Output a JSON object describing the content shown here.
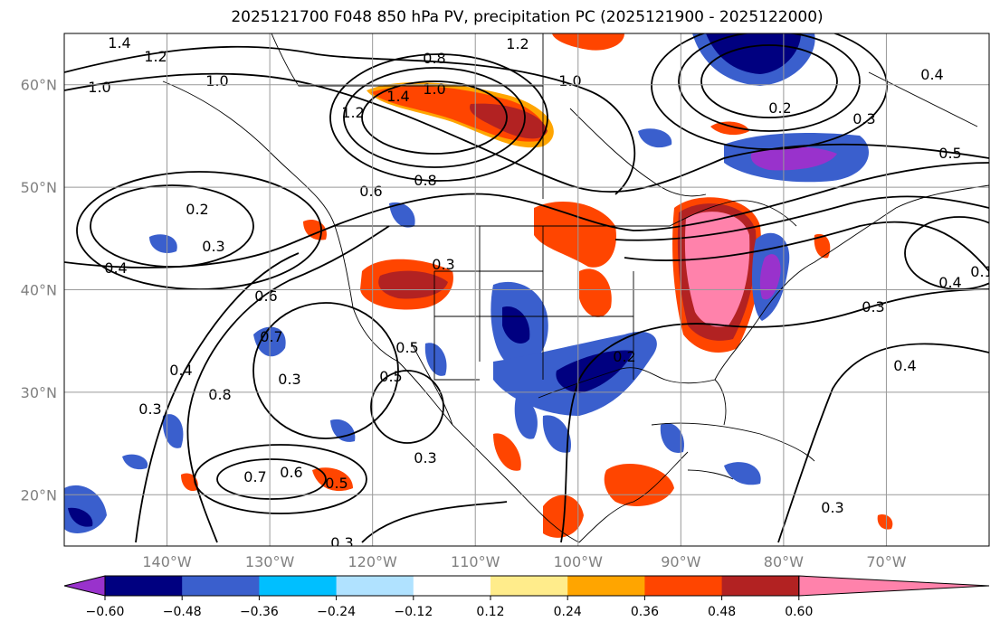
{
  "title": "2025121700 F048 850 hPa PV, precipitation PC (2025121900 - 2025122000)",
  "map": {
    "lon_range": [
      -150,
      -60
    ],
    "lat_range": [
      15,
      65
    ],
    "lon_ticks": [
      {
        "value": -140,
        "label": "140°W"
      },
      {
        "value": -130,
        "label": "130°W"
      },
      {
        "value": -120,
        "label": "120°W"
      },
      {
        "value": -110,
        "label": "110°W"
      },
      {
        "value": -100,
        "label": "100°W"
      },
      {
        "value": -90,
        "label": "90°W"
      },
      {
        "value": -80,
        "label": "80°W"
      },
      {
        "value": -70,
        "label": "70°W"
      }
    ],
    "lat_ticks": [
      {
        "value": 60,
        "label": "60°N"
      },
      {
        "value": 50,
        "label": "50°N"
      },
      {
        "value": 40,
        "label": "40°N"
      },
      {
        "value": 30,
        "label": "30°N"
      },
      {
        "value": 20,
        "label": "20°N"
      }
    ],
    "contour_labels": [
      "1.4",
      "1.2",
      "1.0",
      "1.0",
      "1.2",
      "1.4",
      "1.0",
      "0.8",
      "1.0",
      "1.2",
      "0.8",
      "0.6",
      "0.2",
      "0.3",
      "0.4",
      "0.3",
      "0.6",
      "0.7",
      "0.8",
      "0.4",
      "0.3",
      "0.3",
      "0.5",
      "0.5",
      "0.7",
      "0.6",
      "0.5",
      "0.3",
      "0.3",
      "0.4",
      "0.3",
      "0.4",
      "0.2",
      "0.3",
      "0.5",
      "0.3",
      "0.4",
      "0.1",
      "0.2"
    ]
  },
  "colorbar": {
    "colors": [
      "#9932cc",
      "#000080",
      "#3a5fcd",
      "#00bfff",
      "#b0e2ff",
      "#ffffff",
      "#ffec8b",
      "#ffa500",
      "#ff4500",
      "#b22222",
      "#ff82ab"
    ],
    "ticks": [
      "−0.60",
      "−0.48",
      "−0.36",
      "−0.24",
      "−0.12",
      "0.12",
      "0.24",
      "0.36",
      "0.48",
      "0.60"
    ]
  }
}
